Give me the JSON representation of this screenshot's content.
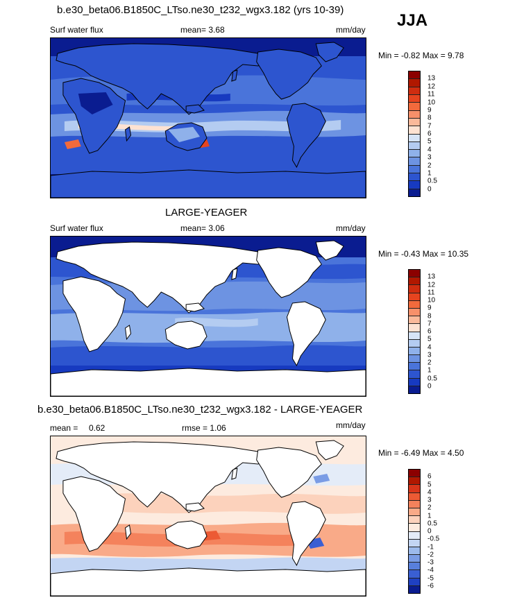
{
  "season": "JJA",
  "panels": [
    {
      "title": "b.e30_beta06.B1850C_LTso.ne30_t232_wgx3.182 (yrs 10-39)",
      "left_label": "Surf water flux",
      "stat1": "mean=   3.68",
      "stat2": "",
      "units": "mm/day",
      "minmax": "Min =  -0.82 Max =   9.78",
      "colorbar": {
        "labels": [
          "13",
          "12",
          "11",
          "10",
          "9",
          "8",
          "7",
          "6",
          "5",
          "4",
          "3",
          "2",
          "1",
          "0.5",
          "0"
        ],
        "colors": [
          "#8b0000",
          "#b01800",
          "#cf2d10",
          "#e6441f",
          "#f26a3c",
          "#f7906a",
          "#fab99a",
          "#fde2d2",
          "#d6e4f7",
          "#b4ccf1",
          "#8fb1ea",
          "#6d93e2",
          "#4a74da",
          "#2d55cf",
          "#173ac0",
          "#0a1c90"
        ]
      }
    },
    {
      "title": "LARGE-YEAGER",
      "left_label": "Surf water flux",
      "stat1": "mean=   3.06",
      "stat2": "",
      "units": "mm/day",
      "minmax": "Min =  -0.43 Max =  10.35",
      "colorbar": {
        "labels": [
          "13",
          "12",
          "11",
          "10",
          "9",
          "8",
          "7",
          "6",
          "5",
          "4",
          "3",
          "2",
          "1",
          "0.5",
          "0"
        ],
        "colors": [
          "#8b0000",
          "#b01800",
          "#cf2d10",
          "#e6441f",
          "#f26a3c",
          "#f7906a",
          "#fab99a",
          "#fde2d2",
          "#d6e4f7",
          "#b4ccf1",
          "#8fb1ea",
          "#6d93e2",
          "#4a74da",
          "#2d55cf",
          "#173ac0",
          "#0a1c90"
        ]
      }
    },
    {
      "title": "b.e30_beta06.B1850C_LTso.ne30_t232_wgx3.182 - LARGE-YEAGER",
      "left_label": "mean =",
      "stat1": "0.62",
      "stat2": "rmse =   1.06",
      "units": "mm/day",
      "minmax": "Min =  -6.49 Max =   4.50",
      "colorbar": {
        "labels": [
          "6",
          "5",
          "4",
          "3",
          "2",
          "1",
          "0.5",
          "0",
          "-0.5",
          "-1",
          "-2",
          "-3",
          "-4",
          "-5",
          "-6"
        ],
        "colors": [
          "#8b0000",
          "#b01800",
          "#d8351a",
          "#ec5a34",
          "#f4825c",
          "#f9aa88",
          "#fcd2bc",
          "#fdebdf",
          "#e4ecf8",
          "#c3d5f3",
          "#9cbaec",
          "#7a9ce5",
          "#587fdc",
          "#3a5fd3",
          "#1f40c2",
          "#0a1c90"
        ]
      }
    }
  ],
  "chart_data": [
    {
      "type": "heatmap",
      "title": "b.e30_beta06.B1850C_LTso.ne30_t232_wgx3.182 (yrs 10-39)",
      "variable": "Surf water flux",
      "units": "mm/day",
      "season": "JJA",
      "mean": 3.68,
      "min": -0.82,
      "max": 9.78,
      "contour_levels": [
        0,
        0.5,
        1,
        2,
        3,
        4,
        5,
        6,
        7,
        8,
        9,
        10,
        11,
        12,
        13
      ]
    },
    {
      "type": "heatmap",
      "title": "LARGE-YEAGER",
      "variable": "Surf water flux",
      "units": "mm/day",
      "season": "JJA",
      "mean": 3.06,
      "min": -0.43,
      "max": 10.35,
      "contour_levels": [
        0,
        0.5,
        1,
        2,
        3,
        4,
        5,
        6,
        7,
        8,
        9,
        10,
        11,
        12,
        13
      ]
    },
    {
      "type": "heatmap",
      "title": "b.e30_beta06.B1850C_LTso.ne30_t232_wgx3.182 - LARGE-YEAGER",
      "units": "mm/day",
      "season": "JJA",
      "mean": 0.62,
      "rmse": 1.06,
      "min": -6.49,
      "max": 4.5,
      "contour_levels": [
        -6,
        -5,
        -4,
        -3,
        -2,
        -1,
        -0.5,
        0,
        0.5,
        1,
        2,
        3,
        4,
        5,
        6
      ]
    }
  ]
}
